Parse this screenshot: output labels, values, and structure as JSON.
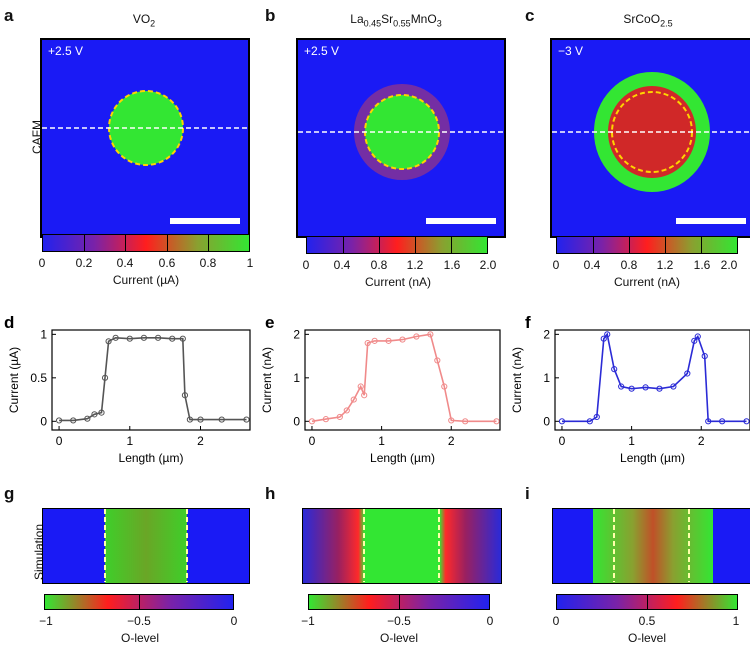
{
  "panels": {
    "a": {
      "letter": "a",
      "title_main": "VO",
      "title_sub": "2",
      "voltage": "+2.5 V",
      "cbar_ticks": [
        "0",
        "0.2",
        "0.4",
        "0.6",
        "0.8",
        "1"
      ],
      "cbar_label": "Current (µA)"
    },
    "b": {
      "letter": "b",
      "title_parts": [
        "La",
        "0.45",
        "Sr",
        "0.55",
        "MnO",
        "3"
      ],
      "voltage": "+2.5 V",
      "cbar_ticks": [
        "0",
        "0.4",
        "0.8",
        "1.2",
        "1.6",
        "2.0"
      ],
      "cbar_label": "Current (nA)"
    },
    "c": {
      "letter": "c",
      "title_main": "SrCoO",
      "title_sub": "2.5",
      "voltage": "−3 V",
      "cbar_ticks": [
        "0",
        "0.4",
        "0.8",
        "1.2",
        "1.6",
        "2.0"
      ],
      "cbar_label": "Current (nA)"
    },
    "g": {
      "letter": "g",
      "cbar_ticks": [
        "−1",
        "−0.5",
        "0"
      ],
      "cbar_label": "O-level"
    },
    "h": {
      "letter": "h",
      "cbar_ticks": [
        "−1",
        "−0.5",
        "0"
      ],
      "cbar_label": "O-level"
    },
    "i": {
      "letter": "i",
      "cbar_ticks": [
        "0",
        "0.5",
        "1"
      ],
      "cbar_label": "O-level"
    }
  },
  "row_labels": {
    "cafm": "CAFM",
    "simulation": "Simulation"
  },
  "chart_data": [
    {
      "panel": "d",
      "type": "line",
      "color": "#555555",
      "xlabel": "Length (µm)",
      "ylabel": "Current (µA)",
      "xlim": [
        -0.1,
        2.7
      ],
      "ylim": [
        -0.1,
        1.05
      ],
      "xticks": [
        0,
        1,
        2
      ],
      "yticks": [
        0,
        0.5,
        1
      ],
      "ytick_labels": [
        "0",
        "0.5",
        "1"
      ],
      "x": [
        0,
        0.2,
        0.4,
        0.5,
        0.6,
        0.65,
        0.7,
        0.8,
        1.0,
        1.2,
        1.4,
        1.6,
        1.75,
        1.78,
        1.85,
        2.0,
        2.3,
        2.65
      ],
      "y": [
        0.01,
        0.01,
        0.03,
        0.08,
        0.1,
        0.5,
        0.92,
        0.96,
        0.95,
        0.96,
        0.96,
        0.95,
        0.95,
        0.3,
        0.02,
        0.02,
        0.02,
        0.02
      ]
    },
    {
      "panel": "e",
      "type": "line",
      "color": "#f08a8a",
      "xlabel": "Length (µm)",
      "ylabel": "Current (nA)",
      "xlim": [
        -0.1,
        2.7
      ],
      "ylim": [
        -0.2,
        2.1
      ],
      "xticks": [
        0,
        1,
        2
      ],
      "yticks": [
        0,
        1,
        2
      ],
      "ytick_labels": [
        "0",
        "1",
        "2"
      ],
      "x": [
        0,
        0.2,
        0.4,
        0.5,
        0.6,
        0.7,
        0.75,
        0.8,
        0.9,
        1.1,
        1.3,
        1.5,
        1.7,
        1.8,
        1.9,
        2.0,
        2.2,
        2.65
      ],
      "y": [
        0.0,
        0.05,
        0.1,
        0.25,
        0.5,
        0.8,
        0.6,
        1.8,
        1.85,
        1.85,
        1.88,
        1.95,
        2.0,
        1.4,
        0.8,
        0.02,
        0.0,
        0.0
      ]
    },
    {
      "panel": "f",
      "type": "line",
      "color": "#2b2bd6",
      "xlabel": "Length (µm)",
      "ylabel": "Current (nA)",
      "xlim": [
        -0.1,
        2.7
      ],
      "ylim": [
        -0.2,
        2.1
      ],
      "xticks": [
        0,
        1,
        2
      ],
      "yticks": [
        0,
        1,
        2
      ],
      "ytick_labels": [
        "0",
        "1",
        "2"
      ],
      "x": [
        0,
        0.4,
        0.5,
        0.6,
        0.65,
        0.75,
        0.85,
        1.0,
        1.2,
        1.4,
        1.6,
        1.8,
        1.9,
        1.95,
        2.05,
        2.1,
        2.3,
        2.65
      ],
      "y": [
        0,
        0,
        0.1,
        1.9,
        2.0,
        1.2,
        0.8,
        0.75,
        0.78,
        0.75,
        0.8,
        1.1,
        1.85,
        1.95,
        1.5,
        0,
        0,
        0
      ]
    }
  ]
}
